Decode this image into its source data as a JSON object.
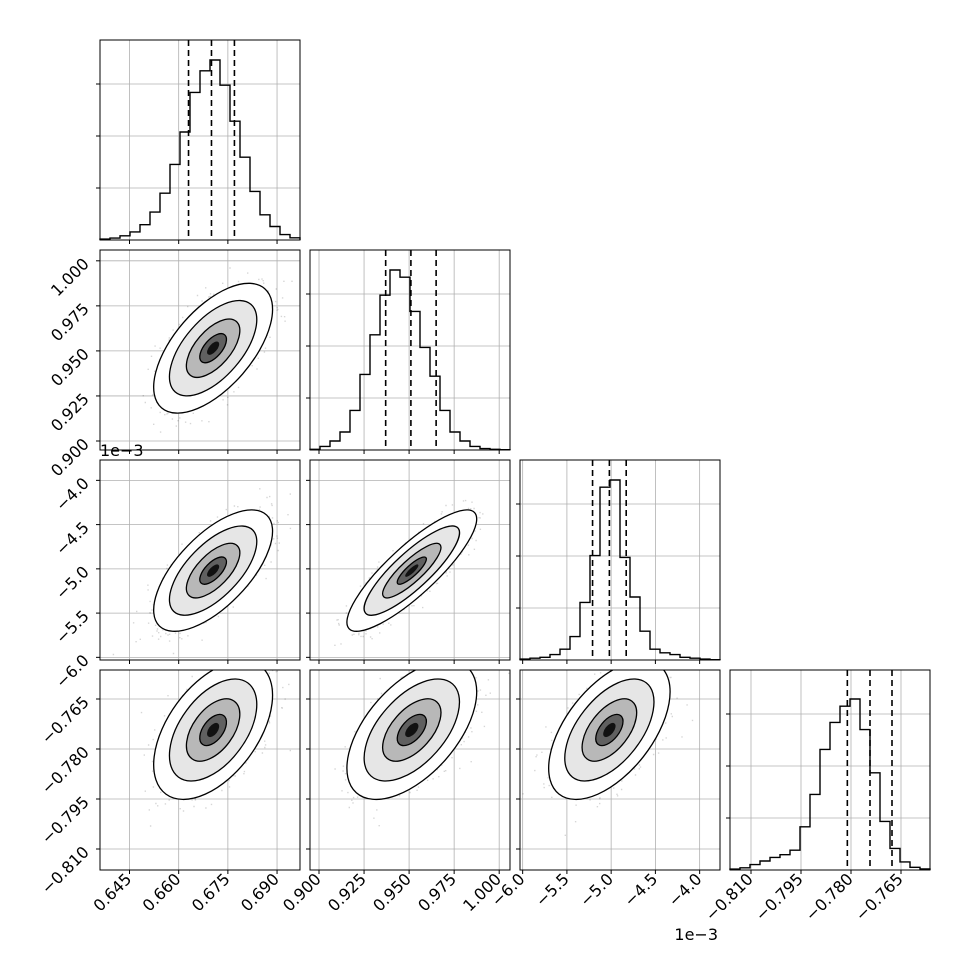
{
  "chart_data": {
    "type": "corner",
    "colors": {
      "frame": "#000000",
      "grid": "#b0b0b0",
      "hist": "#000000",
      "points": "#000000",
      "contour": "#000000"
    },
    "grid": true,
    "parameters": [
      {
        "index": 0,
        "range": [
          0.636,
          0.697
        ],
        "ticks": [
          0.645,
          0.66,
          0.675,
          0.69
        ],
        "tick_labels": [
          "0.645",
          "0.660",
          "0.675",
          "0.690"
        ],
        "offset_label": "",
        "quantiles": [
          0.663,
          0.67,
          0.677
        ]
      },
      {
        "index": 1,
        "range": [
          0.895,
          1.006
        ],
        "ticks": [
          0.9,
          0.925,
          0.95,
          0.975,
          1.0
        ],
        "tick_labels": [
          "0.900",
          "0.925",
          "0.950",
          "0.975",
          "1.000"
        ],
        "offset_label": "",
        "quantiles": [
          0.937,
          0.951,
          0.965
        ]
      },
      {
        "index": 2,
        "range": [
          -6.03,
          -3.77
        ],
        "ticks": [
          -6.0,
          -5.5,
          -5.0,
          -4.5,
          -4.0
        ],
        "tick_labels": [
          "−6.0",
          "−5.5",
          "−5.0",
          "−4.5",
          "−4.0"
        ],
        "offset_label": "1e−3",
        "quantiles": [
          -5.21,
          -5.02,
          -4.83
        ]
      },
      {
        "index": 3,
        "range": [
          -0.8163,
          -0.7563
        ],
        "ticks": [
          -0.81,
          -0.795,
          -0.78,
          -0.765
        ],
        "tick_labels": [
          "−0.810",
          "−0.795",
          "−0.780",
          "−0.765"
        ],
        "offset_label": "",
        "quantiles": [
          -0.7811,
          -0.7743,
          -0.7677
        ]
      }
    ],
    "histograms": [
      {
        "param": 0,
        "counts": [
          0.005,
          0.011,
          0.023,
          0.045,
          0.085,
          0.155,
          0.26,
          0.42,
          0.6,
          0.82,
          0.94,
          1.0,
          0.86,
          0.66,
          0.46,
          0.27,
          0.14,
          0.075,
          0.03,
          0.012
        ]
      },
      {
        "param": 1,
        "counts": [
          0.004,
          0.02,
          0.05,
          0.1,
          0.22,
          0.42,
          0.64,
          0.86,
          1.0,
          0.96,
          0.77,
          0.57,
          0.41,
          0.22,
          0.1,
          0.05,
          0.02,
          0.008,
          0.004,
          0.002
        ]
      },
      {
        "param": 2,
        "counts": [
          0.005,
          0.01,
          0.015,
          0.03,
          0.06,
          0.13,
          0.32,
          0.58,
          0.96,
          1.0,
          0.57,
          0.35,
          0.16,
          0.06,
          0.04,
          0.03,
          0.015,
          0.01,
          0.005,
          0.002
        ]
      },
      {
        "param": 3,
        "counts": [
          0.005,
          0.012,
          0.03,
          0.05,
          0.07,
          0.085,
          0.11,
          0.24,
          0.42,
          0.67,
          0.82,
          0.91,
          0.95,
          0.78,
          0.54,
          0.27,
          0.12,
          0.045,
          0.015,
          0.006
        ]
      }
    ],
    "scatter_panels": [
      {
        "x_param": 0,
        "y_param": 1,
        "center": [
          0.6705,
          0.9515
        ],
        "std": [
          0.0074,
          0.0147
        ],
        "correlation": 0.6,
        "contour_levels": 3
      },
      {
        "x_param": 0,
        "y_param": 2,
        "center": [
          0.6705,
          -5.02
        ],
        "std": [
          0.0074,
          0.28
        ],
        "correlation": 0.65,
        "contour_levels": 3
      },
      {
        "x_param": 1,
        "y_param": 2,
        "center": [
          0.9515,
          -5.02
        ],
        "std": [
          0.0147,
          0.28
        ],
        "correlation": 0.85,
        "contour_levels": 3
      },
      {
        "x_param": 0,
        "y_param": 3,
        "center": [
          0.6705,
          -0.7743
        ],
        "std": [
          0.0074,
          0.0085
        ],
        "correlation": 0.5,
        "contour_levels": 3
      },
      {
        "x_param": 1,
        "y_param": 3,
        "center": [
          0.9515,
          -0.7743
        ],
        "std": [
          0.0147,
          0.0085
        ],
        "correlation": 0.55,
        "contour_levels": 3
      },
      {
        "x_param": 2,
        "y_param": 3,
        "center": [
          -5.02,
          -0.7743
        ],
        "std": [
          0.28,
          0.0085
        ],
        "correlation": 0.55,
        "contour_levels": 3
      }
    ]
  }
}
